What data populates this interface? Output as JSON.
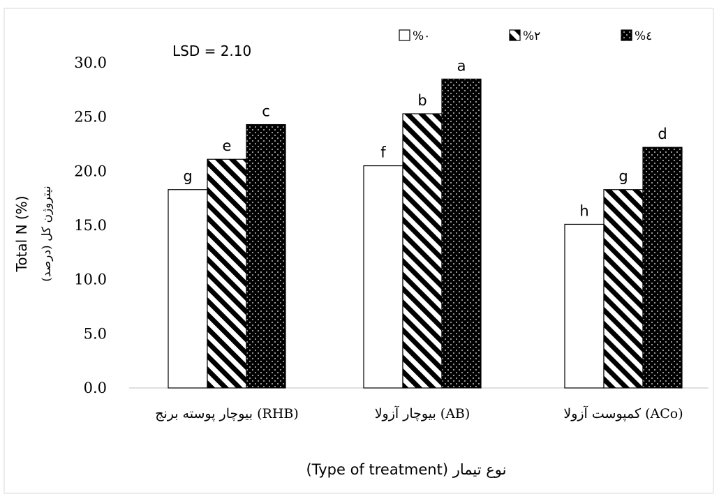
{
  "chart_data": {
    "type": "bar",
    "categories": [
      "بیوچار پوسته برنج (RHB)",
      "بیوچار آزولا (AB)",
      "کمپوست آزولا (ACo)"
    ],
    "series": [
      {
        "name": "%۰",
        "pattern": "white",
        "values": [
          18.3,
          20.5,
          15.1
        ],
        "letters": [
          "g",
          "f",
          "h"
        ]
      },
      {
        "name": "%۲",
        "pattern": "diagonal-stripes",
        "values": [
          21.1,
          25.3,
          18.3
        ],
        "letters": [
          "e",
          "b",
          "g"
        ]
      },
      {
        "name": "%٤",
        "pattern": "black-dotted",
        "values": [
          24.3,
          28.5,
          22.2
        ],
        "letters": [
          "c",
          "a",
          "d"
        ]
      }
    ],
    "ylim": [
      0,
      30
    ],
    "yticks": [
      "0.0",
      "5.0",
      "10.0",
      "15.0",
      "20.0",
      "25.0",
      "30.0"
    ],
    "ylabel_en": "Total N (%)",
    "ylabel_fa": "نیتروژن کل (درصد)",
    "xlabel": "(Type of treatment) نوع تیمار",
    "annotation": "LSD = 2.10",
    "legend_position": "top-right",
    "grid": false
  }
}
